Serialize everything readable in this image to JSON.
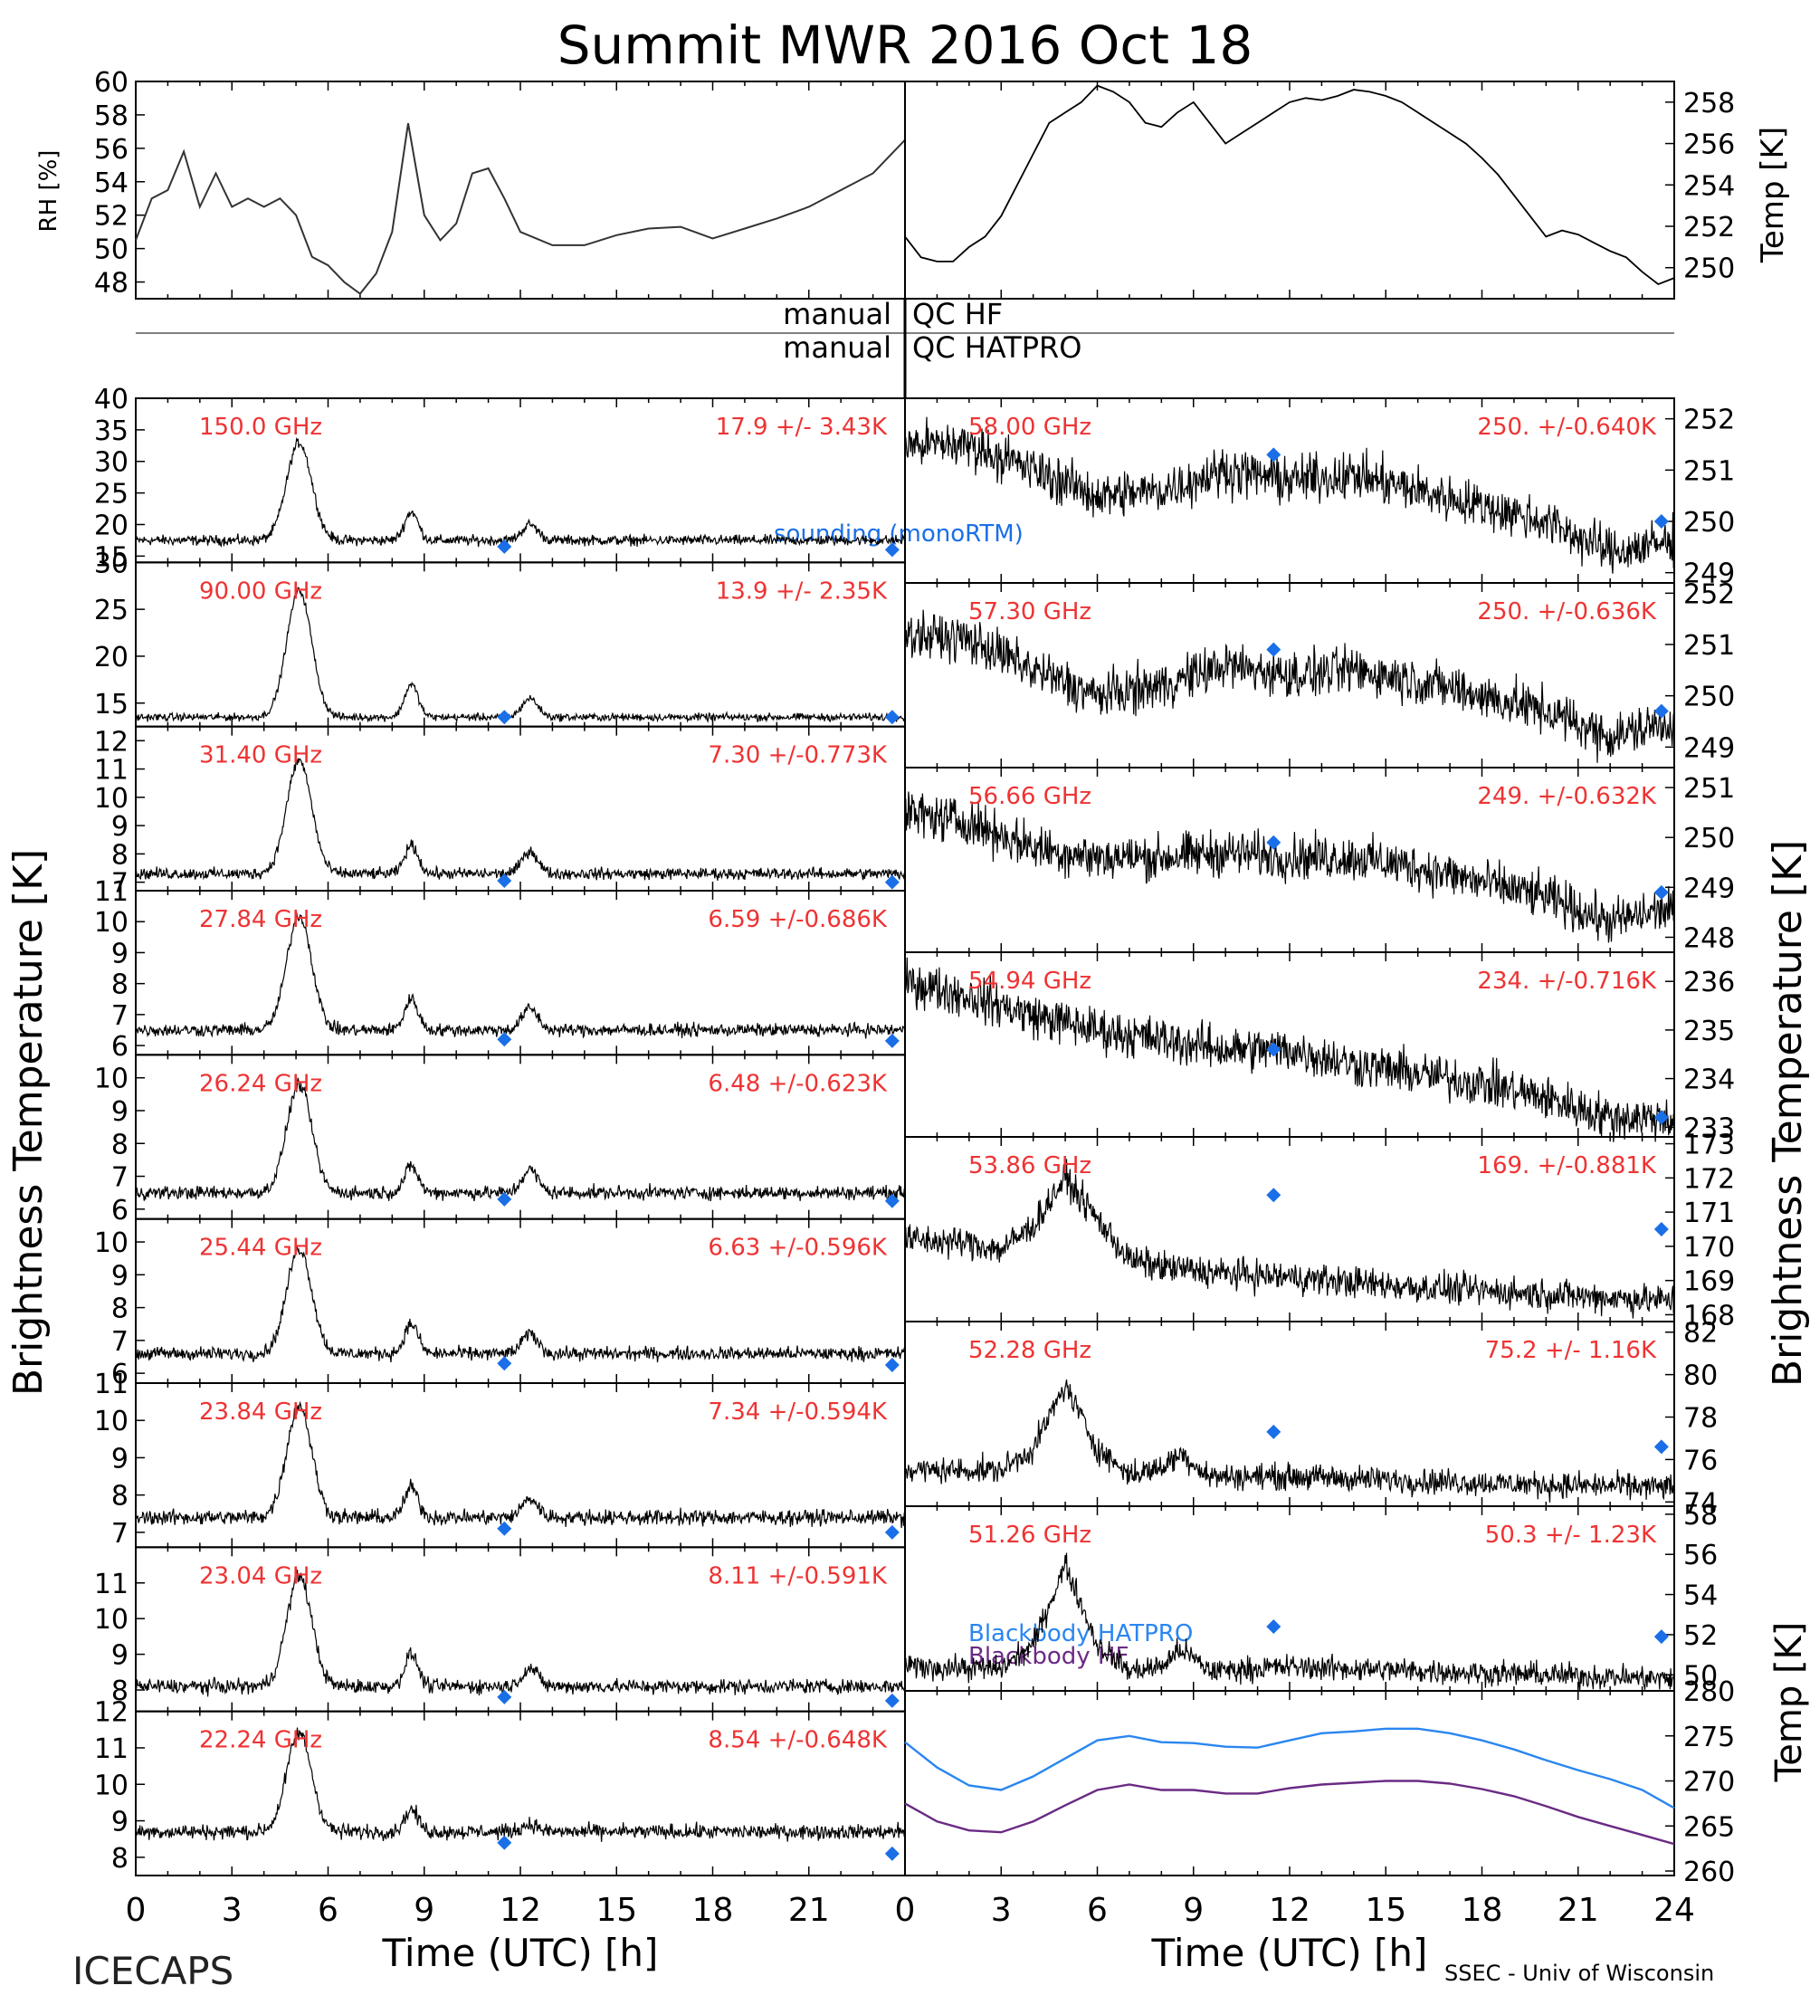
{
  "chart_data": {
    "type": "line",
    "title": "Summit MWR 2016 Oct 18",
    "footer_left": "ICECAPS",
    "footer_right": "SSEC - Univ of Wisconsin",
    "xlabel": "Time (UTC) [h]",
    "xlim": [
      0,
      24
    ],
    "xticks": [
      "0",
      "3",
      "6",
      "9",
      "12",
      "15",
      "18",
      "21"
    ],
    "xticks_right": [
      "0",
      "3",
      "6",
      "9",
      "12",
      "15",
      "18",
      "21",
      "24"
    ],
    "ylabel_left": "Brightness Temperature [K]",
    "ylabel_right": "Brightness Temperature [K]",
    "colors": {
      "trace": "#000000",
      "label": "#ee3333",
      "sounding": "#1a6fe8",
      "bb_hatpro": "#2a86f0",
      "bb_hf": "#6a2a84"
    },
    "top_panels": [
      {
        "ylabel": "RH [%]",
        "ylim": [
          47,
          60
        ],
        "yticks": [
          "48",
          "50",
          "52",
          "54",
          "56",
          "58",
          "60"
        ],
        "x": [
          0,
          0.5,
          1,
          1.5,
          2,
          2.5,
          3,
          3.5,
          4,
          4.5,
          5,
          5.5,
          6,
          6.5,
          7,
          7.5,
          8,
          8.5,
          9,
          9.5,
          10,
          10.5,
          11,
          11.5,
          12,
          13,
          14,
          15,
          16,
          17,
          18,
          19,
          20,
          21,
          22,
          23,
          24
        ],
        "values": [
          50.5,
          53,
          53.5,
          55.8,
          52.5,
          54.5,
          52.5,
          53,
          52.5,
          53,
          52,
          49.5,
          49,
          48,
          47.3,
          48.5,
          51,
          57.5,
          52,
          50.5,
          51.5,
          54.5,
          54.8,
          53,
          51,
          50.2,
          50.2,
          50.8,
          51.2,
          51.3,
          50.6,
          51.2,
          51.8,
          52.5,
          53.5,
          54.5,
          56.5
        ]
      },
      {
        "ylabel": "Temp [K]",
        "ylim": [
          248.5,
          259
        ],
        "yticks": [
          "250",
          "252",
          "254",
          "256",
          "258"
        ],
        "x": [
          0,
          0.5,
          1,
          1.5,
          2,
          2.5,
          3,
          3.5,
          4,
          4.5,
          5,
          5.5,
          6,
          6.5,
          7,
          7.5,
          8,
          8.5,
          9,
          9.5,
          10,
          10.5,
          11,
          11.5,
          12,
          12.5,
          13,
          13.5,
          14,
          14.5,
          15,
          15.5,
          16,
          16.5,
          17,
          17.5,
          18,
          18.5,
          19,
          19.5,
          20,
          20.5,
          21,
          21.5,
          22,
          22.5,
          23,
          23.5,
          24
        ],
        "values": [
          251.5,
          250.5,
          250.3,
          250.3,
          251,
          251.5,
          252.5,
          254,
          255.5,
          257,
          257.5,
          258,
          258.8,
          258.5,
          258,
          257,
          256.8,
          257.5,
          258,
          257,
          256,
          256.5,
          257,
          257.5,
          258,
          258.2,
          258.1,
          258.3,
          258.6,
          258.5,
          258.3,
          258,
          257.5,
          257,
          256.5,
          256,
          255.3,
          254.5,
          253.5,
          252.5,
          251.5,
          251.8,
          251.6,
          251.2,
          250.8,
          250.5,
          249.8,
          249.2,
          249.5
        ]
      }
    ],
    "qc_labels": [
      {
        "left": "manual",
        "right": "QC HF"
      },
      {
        "left": "manual",
        "right": "QC HATPRO"
      }
    ],
    "sounding_label": "sounding (monoRTM)",
    "left_panels": [
      {
        "freq": "150.0 GHz",
        "stat": "17.9 +/-  3.43K",
        "ylim": [
          14,
          40
        ],
        "yticks": [
          "15",
          "20",
          "25",
          "30",
          "35",
          "40"
        ],
        "baseline": 17.5,
        "peak": 33,
        "bump": 22,
        "bump2": 20,
        "noise": 0.8,
        "sounding": [
          [
            11.5,
            16.5
          ],
          [
            23.6,
            16
          ]
        ]
      },
      {
        "freq": "90.00 GHz",
        "stat": "13.9 +/-  2.35K",
        "ylim": [
          12.5,
          30
        ],
        "yticks": [
          "15",
          "20",
          "25",
          "30"
        ],
        "baseline": 13.5,
        "peak": 27,
        "bump": 17,
        "bump2": 15.5,
        "noise": 0.4,
        "sounding": [
          [
            11.5,
            13.5
          ],
          [
            23.6,
            13.5
          ]
        ]
      },
      {
        "freq": "31.40 GHz",
        "stat": "7.30 +/-0.773K",
        "ylim": [
          6.7,
          12.5
        ],
        "yticks": [
          "7",
          "8",
          "9",
          "10",
          "11",
          "12"
        ],
        "baseline": 7.3,
        "peak": 11.3,
        "bump": 8.3,
        "bump2": 8.1,
        "noise": 0.2,
        "sounding": [
          [
            11.5,
            7.05
          ],
          [
            23.6,
            7.0
          ]
        ]
      },
      {
        "freq": "27.84 GHz",
        "stat": "6.59 +/-0.686K",
        "ylim": [
          5.7,
          11
        ],
        "yticks": [
          "6",
          "7",
          "8",
          "9",
          "10",
          "11"
        ],
        "baseline": 6.5,
        "peak": 10.2,
        "bump": 7.5,
        "bump2": 7.2,
        "noise": 0.2,
        "sounding": [
          [
            11.5,
            6.2
          ],
          [
            23.6,
            6.15
          ]
        ]
      },
      {
        "freq": "26.24 GHz",
        "stat": "6.48 +/-0.623K",
        "ylim": [
          5.7,
          10.7
        ],
        "yticks": [
          "6",
          "7",
          "8",
          "9",
          "10"
        ],
        "baseline": 6.5,
        "peak": 9.8,
        "bump": 7.3,
        "bump2": 7.2,
        "noise": 0.2,
        "sounding": [
          [
            11.5,
            6.3
          ],
          [
            23.6,
            6.25
          ]
        ]
      },
      {
        "freq": "25.44 GHz",
        "stat": "6.63 +/-0.596K",
        "ylim": [
          5.7,
          10.7
        ],
        "yticks": [
          "6",
          "7",
          "8",
          "9",
          "10"
        ],
        "baseline": 6.6,
        "peak": 9.8,
        "bump": 7.5,
        "bump2": 7.2,
        "noise": 0.2,
        "sounding": [
          [
            11.5,
            6.3
          ],
          [
            23.6,
            6.25
          ]
        ]
      },
      {
        "freq": "23.84 GHz",
        "stat": "7.34 +/-0.594K",
        "ylim": [
          6.6,
          11
        ],
        "yticks": [
          "7",
          "8",
          "9",
          "10",
          "11"
        ],
        "baseline": 7.4,
        "peak": 10.4,
        "bump": 8.2,
        "bump2": 7.9,
        "noise": 0.2,
        "sounding": [
          [
            11.5,
            7.1
          ],
          [
            23.6,
            7.0
          ]
        ]
      },
      {
        "freq": "23.04 GHz",
        "stat": "8.11 +/-0.591K",
        "ylim": [
          7.4,
          12
        ],
        "yticks": [
          "8",
          "9",
          "10",
          "11"
        ],
        "baseline": 8.1,
        "peak": 11.2,
        "bump": 9.0,
        "bump2": 8.6,
        "noise": 0.2,
        "sounding": [
          [
            11.5,
            7.8
          ],
          [
            23.6,
            7.7
          ]
        ]
      },
      {
        "freq": "22.24 GHz",
        "stat": "8.54 +/-0.648K",
        "ylim": [
          7.5,
          12
        ],
        "yticks": [
          "8",
          "9",
          "10",
          "11",
          "12"
        ],
        "baseline": 8.7,
        "peak": 11.4,
        "bump": 9.3,
        "bump2": 8.9,
        "noise": 0.2,
        "sounding": [
          [
            11.5,
            8.4
          ],
          [
            23.6,
            8.1
          ]
        ]
      }
    ],
    "right_panels": [
      {
        "freq": "58.00 GHz",
        "stat": "250. +/-0.640K",
        "ylim": [
          248.8,
          252.4
        ],
        "yticks": [
          "249",
          "250",
          "251",
          "252"
        ],
        "trend": [
          [
            0,
            251.5
          ],
          [
            2,
            251.5
          ],
          [
            4,
            251.0
          ],
          [
            6,
            250.5
          ],
          [
            8,
            250.6
          ],
          [
            10,
            251.0
          ],
          [
            12,
            250.8
          ],
          [
            14,
            250.9
          ],
          [
            16,
            250.6
          ],
          [
            18,
            250.3
          ],
          [
            20,
            250.0
          ],
          [
            22,
            249.4
          ],
          [
            24,
            249.6
          ]
        ],
        "noise": 0.45,
        "sounding": [
          [
            11.5,
            251.3
          ],
          [
            23.6,
            250.0
          ]
        ]
      },
      {
        "freq": "57.30 GHz",
        "stat": "250. +/-0.636K",
        "ylim": [
          248.6,
          252.2
        ],
        "yticks": [
          "249",
          "250",
          "251",
          "252"
        ],
        "trend": [
          [
            0,
            251.2
          ],
          [
            2,
            251.1
          ],
          [
            4,
            250.5
          ],
          [
            6,
            250.0
          ],
          [
            8,
            250.2
          ],
          [
            10,
            250.6
          ],
          [
            12,
            250.4
          ],
          [
            14,
            250.5
          ],
          [
            16,
            250.3
          ],
          [
            18,
            250.0
          ],
          [
            20,
            249.7
          ],
          [
            22,
            249.2
          ],
          [
            24,
            249.5
          ]
        ],
        "noise": 0.45,
        "sounding": [
          [
            11.5,
            250.9
          ],
          [
            23.6,
            249.7
          ]
        ]
      },
      {
        "freq": "56.66 GHz",
        "stat": "249. +/-0.632K",
        "ylim": [
          247.7,
          251.4
        ],
        "yticks": [
          "248",
          "249",
          "250",
          "251"
        ],
        "trend": [
          [
            0,
            250.5
          ],
          [
            2,
            250.3
          ],
          [
            4,
            249.8
          ],
          [
            6,
            249.6
          ],
          [
            8,
            249.6
          ],
          [
            10,
            249.7
          ],
          [
            12,
            249.6
          ],
          [
            14,
            249.6
          ],
          [
            16,
            249.4
          ],
          [
            18,
            249.1
          ],
          [
            20,
            248.8
          ],
          [
            22,
            248.3
          ],
          [
            24,
            248.6
          ]
        ],
        "noise": 0.45,
        "sounding": [
          [
            11.5,
            249.9
          ],
          [
            23.6,
            248.9
          ]
        ]
      },
      {
        "freq": "54.94 GHz",
        "stat": "234. +/-0.716K",
        "ylim": [
          232.8,
          236.6
        ],
        "yticks": [
          "233",
          "234",
          "235",
          "236"
        ],
        "trend": [
          [
            0,
            236.0
          ],
          [
            2,
            235.7
          ],
          [
            4,
            235.3
          ],
          [
            6,
            235.0
          ],
          [
            8,
            234.8
          ],
          [
            10,
            234.6
          ],
          [
            12,
            234.6
          ],
          [
            14,
            234.3
          ],
          [
            16,
            234.1
          ],
          [
            18,
            233.9
          ],
          [
            20,
            233.6
          ],
          [
            22,
            233.2
          ],
          [
            24,
            233.2
          ]
        ],
        "noise": 0.45,
        "sounding": [
          [
            11.5,
            234.6
          ],
          [
            23.6,
            233.2
          ]
        ]
      },
      {
        "freq": "53.86 GHz",
        "stat": "169. +/-0.881K",
        "ylim": [
          167.8,
          173.2
        ],
        "yticks": [
          "168",
          "169",
          "170",
          "171",
          "172",
          "173"
        ],
        "trend": [
          [
            0,
            170.2
          ],
          [
            2,
            170.1
          ],
          [
            3,
            169.9
          ],
          [
            4,
            170.6
          ],
          [
            5,
            172.0
          ],
          [
            6,
            170.8
          ],
          [
            7,
            169.6
          ],
          [
            8,
            169.4
          ],
          [
            10,
            169.2
          ],
          [
            12,
            169.1
          ],
          [
            16,
            168.8
          ],
          [
            20,
            168.6
          ],
          [
            24,
            168.4
          ]
        ],
        "noise": 0.45,
        "sounding": [
          [
            11.5,
            171.5
          ],
          [
            23.6,
            170.5
          ]
        ]
      },
      {
        "freq": "52.28 GHz",
        "stat": "75.2 +/- 1.16K",
        "ylim": [
          73.8,
          82.5
        ],
        "yticks": [
          "74",
          "76",
          "78",
          "80",
          "82"
        ],
        "trend": [
          [
            0,
            75.5
          ],
          [
            3,
            75.5
          ],
          [
            4,
            76.5
          ],
          [
            5,
            79.5
          ],
          [
            6,
            76.5
          ],
          [
            7,
            75.3
          ],
          [
            8,
            75.6
          ],
          [
            8.6,
            76.3
          ],
          [
            9.5,
            75.2
          ],
          [
            12,
            75.2
          ],
          [
            16,
            75.0
          ],
          [
            20,
            74.8
          ],
          [
            24,
            74.7
          ]
        ],
        "noise": 0.6,
        "sounding": [
          [
            11.5,
            77.3
          ],
          [
            23.6,
            76.6
          ]
        ]
      },
      {
        "freq": "51.26 GHz",
        "stat": "50.3 +/- 1.23K",
        "ylim": [
          49.2,
          58.4
        ],
        "yticks": [
          "50",
          "52",
          "54",
          "56",
          "58"
        ],
        "trend": [
          [
            0,
            50.4
          ],
          [
            3,
            50.3
          ],
          [
            4,
            51.5
          ],
          [
            5,
            55.5
          ],
          [
            6,
            51.5
          ],
          [
            7,
            50.2
          ],
          [
            8,
            50.4
          ],
          [
            8.6,
            51.3
          ],
          [
            9.5,
            50.2
          ],
          [
            12,
            50.4
          ],
          [
            16,
            50.2
          ],
          [
            20,
            50.0
          ],
          [
            24,
            49.8
          ]
        ],
        "noise": 0.6,
        "sounding": [
          [
            11.5,
            52.4
          ],
          [
            23.6,
            51.9
          ]
        ]
      }
    ],
    "blackbody_panel": {
      "ylabel": "Temp [K]",
      "ylim": [
        259.5,
        280
      ],
      "yticks": [
        "260",
        "265",
        "270",
        "275",
        "280"
      ],
      "series": [
        {
          "name": "Blackbody HATPRO",
          "x": [
            0,
            1,
            2,
            3,
            4,
            5,
            6,
            7,
            8,
            9,
            10,
            11,
            12,
            13,
            14,
            15,
            16,
            17,
            18,
            19,
            20,
            21,
            22,
            23,
            24
          ],
          "values": [
            274.3,
            271.5,
            269.5,
            269.0,
            270.5,
            272.5,
            274.5,
            275.0,
            274.3,
            274.2,
            273.8,
            273.7,
            274.5,
            275.3,
            275.5,
            275.8,
            275.8,
            275.3,
            274.5,
            273.5,
            272.3,
            271.2,
            270.2,
            269.0,
            267.0
          ]
        },
        {
          "name": "Blackbody HF",
          "x": [
            0,
            1,
            2,
            3,
            4,
            5,
            6,
            7,
            8,
            9,
            10,
            11,
            12,
            13,
            14,
            15,
            16,
            17,
            18,
            19,
            20,
            21,
            22,
            23,
            24
          ],
          "values": [
            267.5,
            265.5,
            264.5,
            264.3,
            265.5,
            267.3,
            269.0,
            269.6,
            269.0,
            269.0,
            268.6,
            268.6,
            269.2,
            269.6,
            269.8,
            270.0,
            270.0,
            269.7,
            269.1,
            268.3,
            267.2,
            266.0,
            265.0,
            264.0,
            263.0
          ]
        }
      ]
    }
  }
}
